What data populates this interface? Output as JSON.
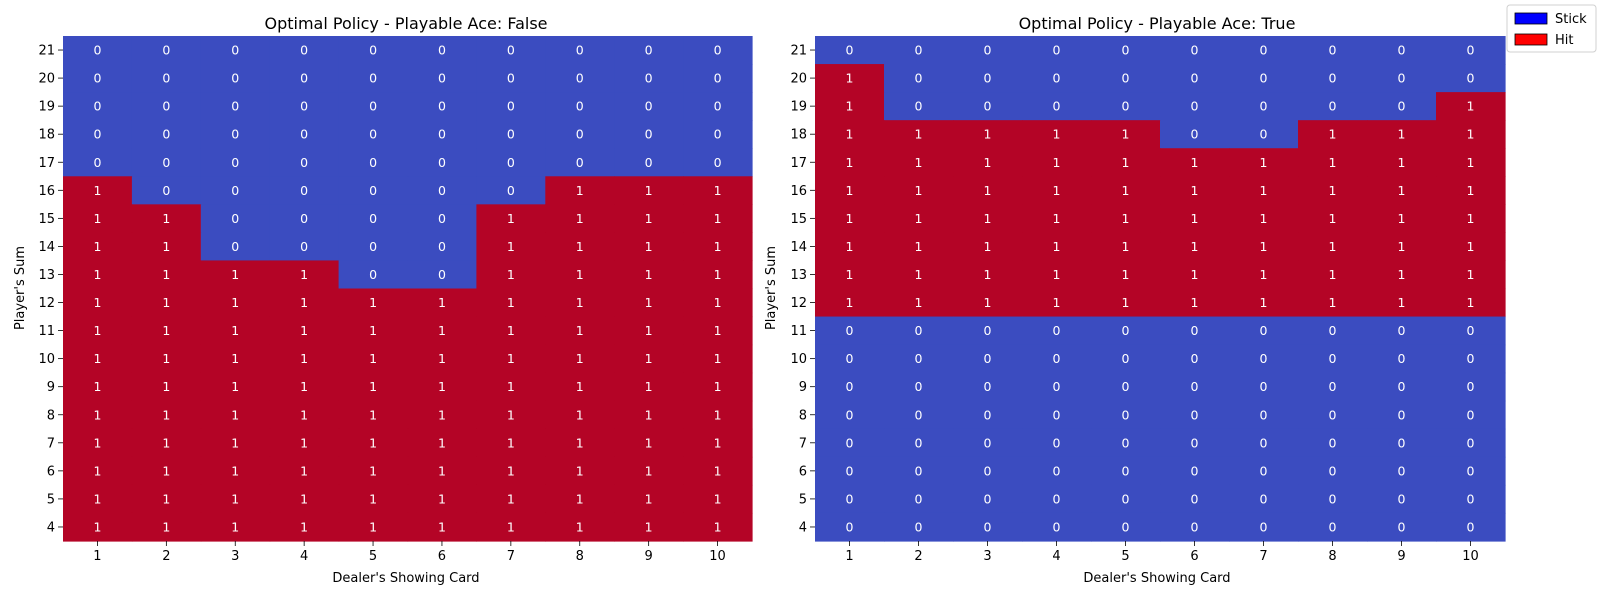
{
  "legend": {
    "items": [
      {
        "label": "Stick",
        "color": "#0000ff"
      },
      {
        "label": "Hit",
        "color": "#ff0000"
      }
    ]
  },
  "colors": {
    "stick_cell": "#3b4cc0",
    "hit_cell": "#b40426"
  },
  "chart_data": [
    {
      "type": "heatmap",
      "title": "Optimal Policy - Playable Ace: False",
      "xlabel": "Dealer's Showing Card",
      "ylabel": "Player's Sum",
      "x": [
        "1",
        "2",
        "3",
        "4",
        "5",
        "6",
        "7",
        "8",
        "9",
        "10"
      ],
      "y": [
        "21",
        "20",
        "19",
        "18",
        "17",
        "16",
        "15",
        "14",
        "13",
        "12",
        "11",
        "10",
        "9",
        "8",
        "7",
        "6",
        "5",
        "4"
      ],
      "values": [
        [
          0,
          0,
          0,
          0,
          0,
          0,
          0,
          0,
          0,
          0
        ],
        [
          0,
          0,
          0,
          0,
          0,
          0,
          0,
          0,
          0,
          0
        ],
        [
          0,
          0,
          0,
          0,
          0,
          0,
          0,
          0,
          0,
          0
        ],
        [
          0,
          0,
          0,
          0,
          0,
          0,
          0,
          0,
          0,
          0
        ],
        [
          0,
          0,
          0,
          0,
          0,
          0,
          0,
          0,
          0,
          0
        ],
        [
          1,
          0,
          0,
          0,
          0,
          0,
          0,
          1,
          1,
          1
        ],
        [
          1,
          1,
          0,
          0,
          0,
          0,
          1,
          1,
          1,
          1
        ],
        [
          1,
          1,
          0,
          0,
          0,
          0,
          1,
          1,
          1,
          1
        ],
        [
          1,
          1,
          1,
          1,
          0,
          0,
          1,
          1,
          1,
          1
        ],
        [
          1,
          1,
          1,
          1,
          1,
          1,
          1,
          1,
          1,
          1
        ],
        [
          1,
          1,
          1,
          1,
          1,
          1,
          1,
          1,
          1,
          1
        ],
        [
          1,
          1,
          1,
          1,
          1,
          1,
          1,
          1,
          1,
          1
        ],
        [
          1,
          1,
          1,
          1,
          1,
          1,
          1,
          1,
          1,
          1
        ],
        [
          1,
          1,
          1,
          1,
          1,
          1,
          1,
          1,
          1,
          1
        ],
        [
          1,
          1,
          1,
          1,
          1,
          1,
          1,
          1,
          1,
          1
        ],
        [
          1,
          1,
          1,
          1,
          1,
          1,
          1,
          1,
          1,
          1
        ],
        [
          1,
          1,
          1,
          1,
          1,
          1,
          1,
          1,
          1,
          1
        ],
        [
          1,
          1,
          1,
          1,
          1,
          1,
          1,
          1,
          1,
          1
        ]
      ]
    },
    {
      "type": "heatmap",
      "title": "Optimal Policy - Playable Ace: True",
      "xlabel": "Dealer's Showing Card",
      "ylabel": "Player's Sum",
      "x": [
        "1",
        "2",
        "3",
        "4",
        "5",
        "6",
        "7",
        "8",
        "9",
        "10"
      ],
      "y": [
        "21",
        "20",
        "19",
        "18",
        "17",
        "16",
        "15",
        "14",
        "13",
        "12",
        "11",
        "10",
        "9",
        "8",
        "7",
        "6",
        "5",
        "4"
      ],
      "values": [
        [
          0,
          0,
          0,
          0,
          0,
          0,
          0,
          0,
          0,
          0
        ],
        [
          1,
          0,
          0,
          0,
          0,
          0,
          0,
          0,
          0,
          0
        ],
        [
          1,
          0,
          0,
          0,
          0,
          0,
          0,
          0,
          0,
          1
        ],
        [
          1,
          1,
          1,
          1,
          1,
          0,
          0,
          1,
          1,
          1
        ],
        [
          1,
          1,
          1,
          1,
          1,
          1,
          1,
          1,
          1,
          1
        ],
        [
          1,
          1,
          1,
          1,
          1,
          1,
          1,
          1,
          1,
          1
        ],
        [
          1,
          1,
          1,
          1,
          1,
          1,
          1,
          1,
          1,
          1
        ],
        [
          1,
          1,
          1,
          1,
          1,
          1,
          1,
          1,
          1,
          1
        ],
        [
          1,
          1,
          1,
          1,
          1,
          1,
          1,
          1,
          1,
          1
        ],
        [
          1,
          1,
          1,
          1,
          1,
          1,
          1,
          1,
          1,
          1
        ],
        [
          0,
          0,
          0,
          0,
          0,
          0,
          0,
          0,
          0,
          0
        ],
        [
          0,
          0,
          0,
          0,
          0,
          0,
          0,
          0,
          0,
          0
        ],
        [
          0,
          0,
          0,
          0,
          0,
          0,
          0,
          0,
          0,
          0
        ],
        [
          0,
          0,
          0,
          0,
          0,
          0,
          0,
          0,
          0,
          0
        ],
        [
          0,
          0,
          0,
          0,
          0,
          0,
          0,
          0,
          0,
          0
        ],
        [
          0,
          0,
          0,
          0,
          0,
          0,
          0,
          0,
          0,
          0
        ],
        [
          0,
          0,
          0,
          0,
          0,
          0,
          0,
          0,
          0,
          0
        ],
        [
          0,
          0,
          0,
          0,
          0,
          0,
          0,
          0,
          0,
          0
        ]
      ]
    }
  ]
}
